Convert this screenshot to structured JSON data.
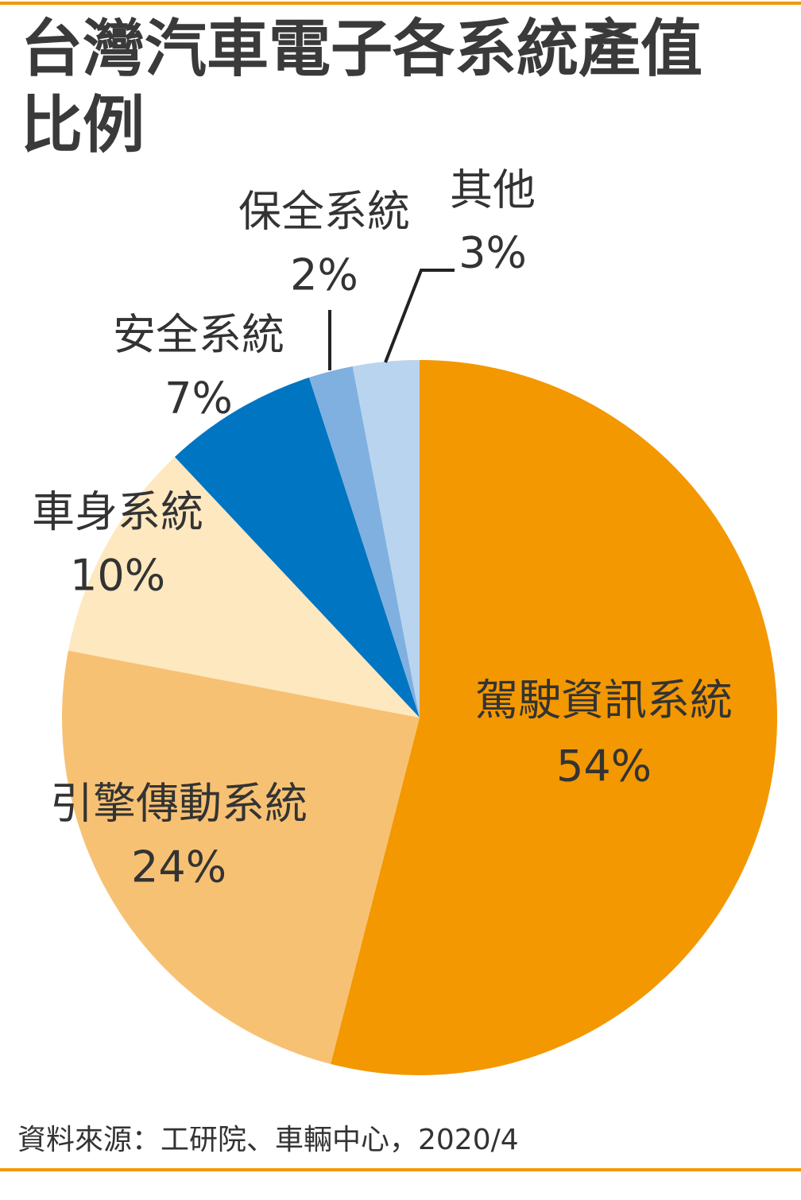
{
  "chart_data": {
    "type": "pie",
    "title": "台灣汽車電子各系統產值比例",
    "categories": [
      "駕駛資訊系統",
      "引擎傳動系統",
      "車身系統",
      "安全系統",
      "保全系統",
      "其他"
    ],
    "values": [
      54,
      24,
      10,
      7,
      2,
      3
    ],
    "value_labels": [
      "54%",
      "24%",
      "10%",
      "7%",
      "2%",
      "3%"
    ],
    "colors": [
      "#f39800",
      "#f7c173",
      "#fde8c0",
      "#0075c1",
      "#7fb0e0",
      "#b8d4ef"
    ],
    "source": "資料來源：工研院、車輛中心，2020/4"
  }
}
